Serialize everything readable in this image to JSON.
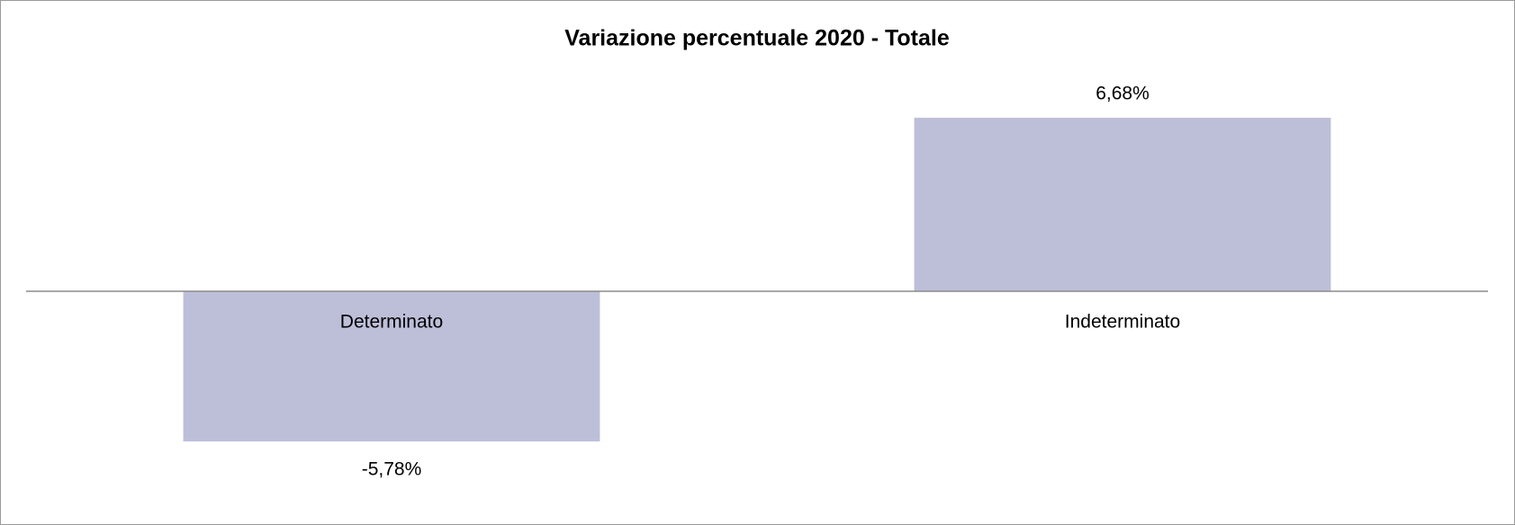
{
  "chart_data": {
    "type": "bar",
    "title": "Variazione percentuale 2020 - Totale",
    "categories": [
      "Determinato",
      "Indeterminato"
    ],
    "values": [
      -5.78,
      6.68
    ],
    "value_labels": [
      "-5,78%",
      "6,68%"
    ],
    "color": "#bdbfd9"
  }
}
